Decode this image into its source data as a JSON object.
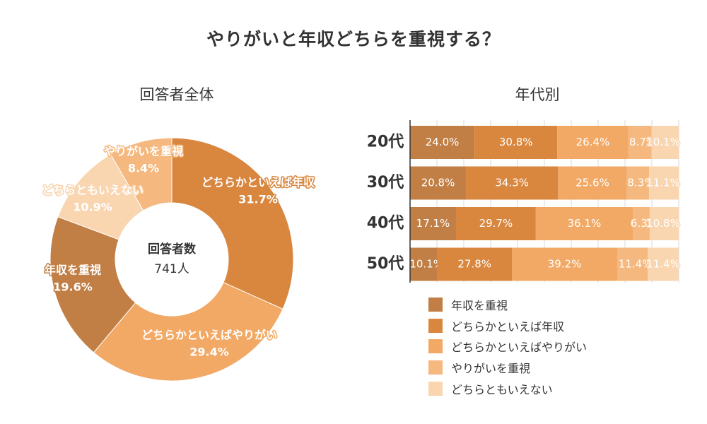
{
  "title": "やりがいと年収どちらを重視する？",
  "left_chart_title": "回答者全体",
  "right_chart_title": "年代別",
  "center_label_1": "回答者数",
  "center_label_2": "741人",
  "colors": {
    "年収を重視": "#C17F45",
    "どちらかといえば年収": "#D9863E",
    "どちらかといえばやりがい": "#F2A965",
    "やりがいを重視": "#F5B87E",
    "どちらともいえない": "#F9D5B0"
  },
  "chart_data": [
    {
      "type": "pie",
      "title": "回答者全体",
      "categories": [
        "どちらかといえば年収",
        "どちらかといえばやりがい",
        "年収を重視",
        "どちらともいえない",
        "やりがいを重視"
      ],
      "values": [
        31.7,
        29.4,
        19.6,
        10.9,
        8.4
      ],
      "labels": [
        "31.7%",
        "29.4%",
        "19.6%",
        "10.9%",
        "8.4%"
      ],
      "center_text": [
        "回答者数",
        "741人"
      ]
    },
    {
      "type": "bar",
      "orientation": "horizontal",
      "stacked": true,
      "title": "年代別",
      "categories": [
        "20代",
        "30代",
        "40代",
        "50代"
      ],
      "xlim": [
        0,
        100
      ],
      "series": [
        {
          "name": "年収を重視",
          "values": [
            24.0,
            20.8,
            17.1,
            10.1
          ],
          "labels": [
            "24.0%",
            "20.8%",
            "17.1%",
            "10.1%"
          ]
        },
        {
          "name": "どちらかといえば年収",
          "values": [
            30.8,
            34.3,
            29.7,
            27.8
          ],
          "labels": [
            "30.8%",
            "34.3%",
            "29.7%",
            "27.8%"
          ]
        },
        {
          "name": "どちらかといえばやりがい",
          "values": [
            26.4,
            25.6,
            36.1,
            39.2
          ],
          "labels": [
            "26.4%",
            "25.6%",
            "36.1%",
            "39.2%"
          ]
        },
        {
          "name": "やりがいを重視",
          "values": [
            8.7,
            8.3,
            6.3,
            11.4
          ],
          "labels": [
            "8.7%",
            "8.3%",
            "6.3%",
            "11.4%"
          ]
        },
        {
          "name": "どちらともいえない",
          "values": [
            10.1,
            11.1,
            10.8,
            11.4
          ],
          "labels": [
            "10.1%",
            "11.1%",
            "10.8%",
            "11.4%"
          ]
        }
      ],
      "legend": [
        "年収を重視",
        "どちらかといえば年収",
        "どちらかといえばやりがい",
        "やりがいを重視",
        "どちらともいえない"
      ],
      "legend_position": "bottom"
    }
  ]
}
